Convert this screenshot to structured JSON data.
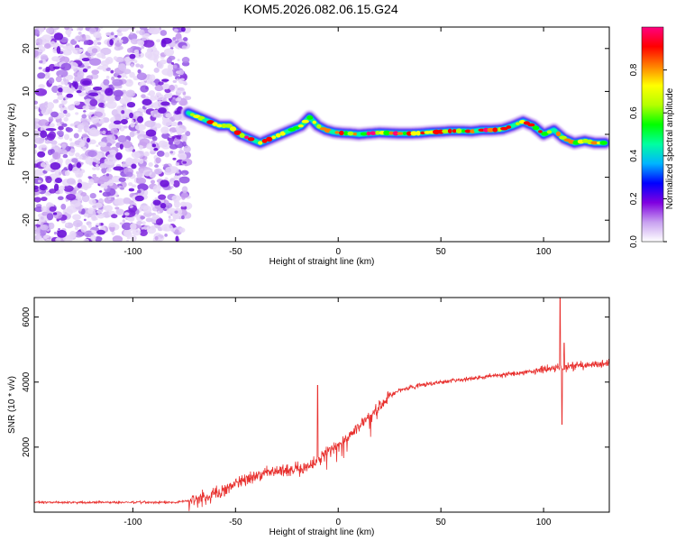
{
  "title": "KOM5.2026.082.06.15.G24",
  "chart_data": [
    {
      "type": "heatmap",
      "xlabel": "Height of straight line (km)",
      "ylabel": "Frequency (Hz)",
      "xlim": [
        -148,
        132
      ],
      "ylim": [
        -25,
        25
      ],
      "xticks": [
        -100,
        -50,
        0,
        50,
        100
      ],
      "yticks": [
        20,
        10,
        0,
        -10,
        -20
      ],
      "noise_region_end_km": -73,
      "ridge": {
        "x": [
          -73,
          -68,
          -63,
          -58,
          -53,
          -48,
          -43,
          -38,
          -33,
          -28,
          -23,
          -18,
          -14,
          -10,
          -6,
          -2,
          2,
          6,
          10,
          15,
          20,
          25,
          30,
          35,
          40,
          45,
          50,
          55,
          60,
          65,
          70,
          75,
          80,
          85,
          90,
          95,
          100,
          105,
          110,
          115,
          120,
          125,
          130
        ],
        "y": [
          5,
          4,
          3,
          2,
          2,
          0,
          -1,
          -2,
          -1,
          0,
          1,
          2,
          4,
          2,
          1,
          0.5,
          0.3,
          0.2,
          0,
          0.2,
          0.4,
          0.3,
          0.2,
          0.2,
          0.3,
          0.5,
          0.6,
          0.8,
          0.8,
          0.7,
          1,
          1,
          1.2,
          2,
          3,
          2,
          0,
          1,
          -1,
          -2,
          -1.5,
          -2,
          -2
        ]
      },
      "colorbar": {
        "label": "Normalized spectral amplitude",
        "ticks": [
          0.0,
          0.2,
          0.4,
          0.6,
          0.8
        ],
        "tick_labels": [
          "0.0",
          "0.2",
          "0.4",
          "0.6",
          "0.8"
        ],
        "range": [
          0,
          1
        ],
        "colors": [
          "#ffffff",
          "#c8a0f0",
          "#8000e0",
          "#0000ff",
          "#00b4ff",
          "#00ffa0",
          "#00ff00",
          "#b4ff00",
          "#ffff00",
          "#ff8000",
          "#ff0000",
          "#ff0080"
        ]
      }
    },
    {
      "type": "line",
      "xlabel": "Height of straight line (km)",
      "ylabel": "SNR (10 * v/v)",
      "xlim": [
        -148,
        132
      ],
      "ylim": [
        0,
        6600
      ],
      "xticks": [
        -100,
        -50,
        0,
        50,
        100
      ],
      "yticks": [
        2000,
        4000,
        6000
      ],
      "series": [
        {
          "name": "SNR",
          "color": "#e8302e",
          "x": [
            -148,
            -120,
            -100,
            -80,
            -73,
            -65,
            -55,
            -45,
            -35,
            -25,
            -15,
            -10,
            -5,
            0,
            5,
            10,
            15,
            20,
            25,
            30,
            40,
            50,
            60,
            70,
            80,
            90,
            100,
            108,
            115,
            120,
            132
          ],
          "y": [
            300,
            300,
            300,
            300,
            350,
            450,
            700,
            1050,
            1200,
            1300,
            1350,
            1600,
            1900,
            2050,
            2350,
            2650,
            2900,
            3250,
            3550,
            3750,
            3900,
            4000,
            4080,
            4150,
            4220,
            4300,
            4380,
            4450,
            4500,
            4520,
            4550
          ],
          "spikes": [
            {
              "x": -10,
              "y": 3900
            },
            {
              "x": 108,
              "y": 6600
            },
            {
              "x": 109,
              "y": 2700
            },
            {
              "x": 110,
              "y": 5200
            }
          ]
        }
      ]
    }
  ]
}
